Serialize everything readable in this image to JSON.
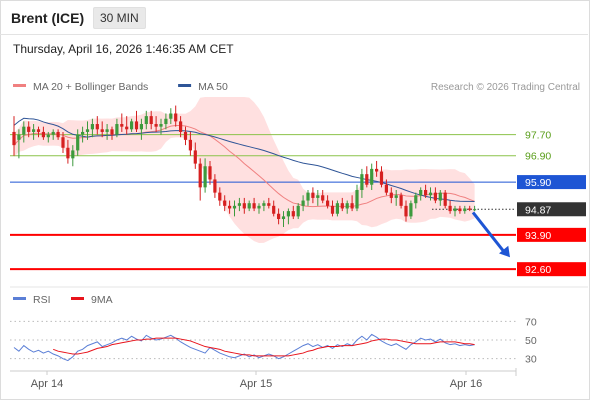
{
  "header": {
    "title": "Brent (ICE)",
    "period": "30 MIN",
    "datetime": "Thursday, April 16, 2026 1:46:35 AM CET"
  },
  "colors": {
    "ma20": "#f08080",
    "bollinger": "#ffd6d6",
    "ma50": "#2f5597",
    "resistance": "#8bc34a",
    "pivot": "#1e55d4",
    "support": "#ff0000",
    "last": "#333333",
    "rsi": "#5b7fd6",
    "rsi_ma": "#e8141c",
    "bull": "#3d9a3d",
    "bear": "#d62020"
  },
  "chart_data": [
    {
      "type": "candlestick",
      "legend": [
        {
          "label": "MA 20 + Bollinger Bands",
          "color": "#f08080"
        },
        {
          "label": "MA 50",
          "color": "#2f5597"
        }
      ],
      "credit": "Research © 2026 Trading Central",
      "x_labels": [
        "Apr 14",
        "Apr 15",
        "Apr 16"
      ],
      "ylim": [
        92.0,
        99.2
      ],
      "levels": [
        {
          "value": 97.7,
          "label": "97.70",
          "kind": "resistance"
        },
        {
          "value": 96.9,
          "label": "96.90",
          "kind": "resistance"
        },
        {
          "value": 95.9,
          "label": "95.90",
          "kind": "pivot"
        },
        {
          "value": 94.87,
          "label": "94.87",
          "kind": "last"
        },
        {
          "value": 93.9,
          "label": "93.90",
          "kind": "support"
        },
        {
          "value": 92.6,
          "label": "92.60",
          "kind": "support"
        }
      ],
      "forecast_arrow": {
        "from": 94.75,
        "to": 93.05
      },
      "candles": [
        [
          97.8,
          98.4,
          96.9,
          97.3
        ],
        [
          97.5,
          97.9,
          96.8,
          97.7
        ],
        [
          97.7,
          98.2,
          97.4,
          98.0
        ],
        [
          98.0,
          98.2,
          97.6,
          97.8
        ],
        [
          97.8,
          98.1,
          97.5,
          97.9
        ],
        [
          97.9,
          98.0,
          97.6,
          97.8
        ],
        [
          97.8,
          98.0,
          97.5,
          97.6
        ],
        [
          97.6,
          97.8,
          97.4,
          97.7
        ],
        [
          97.7,
          97.9,
          97.5,
          97.8
        ],
        [
          97.8,
          97.9,
          97.5,
          97.6
        ],
        [
          97.6,
          97.8,
          97.0,
          97.2
        ],
        [
          97.2,
          97.5,
          96.6,
          96.8
        ],
        [
          96.8,
          97.3,
          96.5,
          97.1
        ],
        [
          97.1,
          97.9,
          96.9,
          97.7
        ],
        [
          97.7,
          98.0,
          97.4,
          97.8
        ],
        [
          97.8,
          98.2,
          97.5,
          97.9
        ],
        [
          97.9,
          98.3,
          97.6,
          98.1
        ],
        [
          98.1,
          98.4,
          97.7,
          97.9
        ],
        [
          97.9,
          98.2,
          97.6,
          97.8
        ],
        [
          97.8,
          98.1,
          97.5,
          97.9
        ],
        [
          97.9,
          98.0,
          97.5,
          97.7
        ],
        [
          97.7,
          98.3,
          97.6,
          98.1
        ],
        [
          98.1,
          98.5,
          97.8,
          98.0
        ],
        [
          98.0,
          98.4,
          97.7,
          97.9
        ],
        [
          97.9,
          98.3,
          97.8,
          98.2
        ],
        [
          98.2,
          98.6,
          97.8,
          97.9
        ],
        [
          97.9,
          98.3,
          97.5,
          98.1
        ],
        [
          98.1,
          98.6,
          97.9,
          98.4
        ],
        [
          98.4,
          98.6,
          97.9,
          98.1
        ],
        [
          98.1,
          98.4,
          97.8,
          98.0
        ],
        [
          98.0,
          98.3,
          97.7,
          98.1
        ],
        [
          98.1,
          98.5,
          97.9,
          98.3
        ],
        [
          98.3,
          98.7,
          98.1,
          98.5
        ],
        [
          98.5,
          98.8,
          98.0,
          98.2
        ],
        [
          98.2,
          98.4,
          97.6,
          97.8
        ],
        [
          97.8,
          98.0,
          97.3,
          97.5
        ],
        [
          97.5,
          97.8,
          96.9,
          97.1
        ],
        [
          97.1,
          97.4,
          96.4,
          96.6
        ],
        [
          96.6,
          96.8,
          95.2,
          95.7
        ],
        [
          95.7,
          96.8,
          95.5,
          96.5
        ],
        [
          96.5,
          96.7,
          95.8,
          96.0
        ],
        [
          96.0,
          96.2,
          95.3,
          95.5
        ],
        [
          95.5,
          95.7,
          95.0,
          95.2
        ],
        [
          95.2,
          95.4,
          94.8,
          95.0
        ],
        [
          95.0,
          95.2,
          94.7,
          94.9
        ],
        [
          94.9,
          95.2,
          94.6,
          95.0
        ],
        [
          95.0,
          95.3,
          94.8,
          95.1
        ],
        [
          95.1,
          95.3,
          94.7,
          94.9
        ],
        [
          94.9,
          95.2,
          94.8,
          95.1
        ],
        [
          95.1,
          95.3,
          94.8,
          94.9
        ],
        [
          94.9,
          95.1,
          94.7,
          95.0
        ],
        [
          95.0,
          95.2,
          94.8,
          95.1
        ],
        [
          95.1,
          95.3,
          94.9,
          95.0
        ],
        [
          95.0,
          95.2,
          94.6,
          94.7
        ],
        [
          94.7,
          94.9,
          94.3,
          94.5
        ],
        [
          94.5,
          94.8,
          94.2,
          94.6
        ],
        [
          94.6,
          94.9,
          94.3,
          94.8
        ],
        [
          94.8,
          95.0,
          94.5,
          94.6
        ],
        [
          94.6,
          95.1,
          94.5,
          95.0
        ],
        [
          95.0,
          95.4,
          94.8,
          95.2
        ],
        [
          95.2,
          95.6,
          95.0,
          95.5
        ],
        [
          95.5,
          95.7,
          95.1,
          95.3
        ],
        [
          95.3,
          95.6,
          95.0,
          95.4
        ],
        [
          95.4,
          95.6,
          95.1,
          95.2
        ],
        [
          95.2,
          95.4,
          94.9,
          95.0
        ],
        [
          95.0,
          95.2,
          94.6,
          94.7
        ],
        [
          94.7,
          95.2,
          94.6,
          95.1
        ],
        [
          95.1,
          95.3,
          94.8,
          94.9
        ],
        [
          94.9,
          95.2,
          94.7,
          95.1
        ],
        [
          95.1,
          95.4,
          94.8,
          94.9
        ],
        [
          94.9,
          95.8,
          94.8,
          95.6
        ],
        [
          95.6,
          96.4,
          95.3,
          96.2
        ],
        [
          96.2,
          96.5,
          95.7,
          95.8
        ],
        [
          95.8,
          96.6,
          95.6,
          96.4
        ],
        [
          96.4,
          96.7,
          96.1,
          96.3
        ],
        [
          96.3,
          96.5,
          95.7,
          95.8
        ],
        [
          95.8,
          96.0,
          95.4,
          95.5
        ],
        [
          95.5,
          95.7,
          95.1,
          95.3
        ],
        [
          95.3,
          95.6,
          95.0,
          95.4
        ],
        [
          95.4,
          95.5,
          94.9,
          95.0
        ],
        [
          95.0,
          95.2,
          94.4,
          94.6
        ],
        [
          94.6,
          95.2,
          94.5,
          95.1
        ],
        [
          95.1,
          95.5,
          94.9,
          95.4
        ],
        [
          95.4,
          95.7,
          95.2,
          95.6
        ],
        [
          95.6,
          95.8,
          95.3,
          95.4
        ],
        [
          95.4,
          95.7,
          95.2,
          95.5
        ],
        [
          95.5,
          95.7,
          95.1,
          95.2
        ],
        [
          95.2,
          95.6,
          95.0,
          95.5
        ],
        [
          95.5,
          95.6,
          94.9,
          95.0
        ],
        [
          95.0,
          95.2,
          94.7,
          94.8
        ],
        [
          94.8,
          95.0,
          94.6,
          94.9
        ],
        [
          94.9,
          95.0,
          94.7,
          94.8
        ],
        [
          94.8,
          95.0,
          94.7,
          94.9
        ],
        [
          94.9,
          95.0,
          94.8,
          94.85
        ],
        [
          94.85,
          95.0,
          94.8,
          94.87
        ]
      ]
    },
    {
      "type": "line",
      "legend": [
        {
          "label": "RSI",
          "color": "#5b7fd6"
        },
        {
          "label": "9MA",
          "color": "#e8141c"
        }
      ],
      "ylim": [
        20,
        80
      ],
      "y_ticks": [
        70,
        50,
        30
      ],
      "series": [
        {
          "name": "RSI",
          "values": [
            42,
            38,
            44,
            40,
            37,
            39,
            36,
            38,
            35,
            33,
            30,
            28,
            32,
            38,
            40,
            44,
            46,
            48,
            43,
            45,
            47,
            50,
            52,
            50,
            54,
            51,
            49,
            55,
            52,
            50,
            51,
            53,
            55,
            52,
            48,
            45,
            42,
            40,
            38,
            36,
            42,
            39,
            36,
            34,
            32,
            31,
            33,
            35,
            32,
            34,
            31,
            33,
            35,
            33,
            30,
            32,
            35,
            38,
            41,
            44,
            46,
            43,
            45,
            42,
            44,
            41,
            45,
            43,
            46,
            44,
            50,
            54,
            50,
            56,
            53,
            49,
            46,
            44,
            46,
            43,
            40,
            45,
            48,
            52,
            50,
            51,
            48,
            51,
            47,
            45,
            46,
            44,
            45,
            44,
            45
          ]
        },
        {
          "name": "9MA",
          "values": [
            null,
            null,
            null,
            null,
            null,
            null,
            null,
            null,
            40,
            38,
            37,
            36,
            35,
            35,
            36,
            37,
            39,
            41,
            42,
            43,
            45,
            46,
            47,
            48,
            49,
            50,
            50,
            51,
            51,
            52,
            52,
            52,
            52,
            52,
            51,
            50,
            49,
            47,
            45,
            43,
            42,
            41,
            40,
            38,
            37,
            36,
            35,
            34,
            34,
            33,
            33,
            33,
            33,
            33,
            33,
            33,
            33,
            34,
            35,
            36,
            38,
            39,
            41,
            42,
            43,
            43,
            43,
            44,
            44,
            44,
            45,
            46,
            47,
            49,
            50,
            51,
            51,
            50,
            50,
            49,
            48,
            47,
            46,
            46,
            46,
            46,
            47,
            48,
            48,
            48,
            48,
            47,
            46,
            46,
            45
          ]
        }
      ]
    }
  ]
}
